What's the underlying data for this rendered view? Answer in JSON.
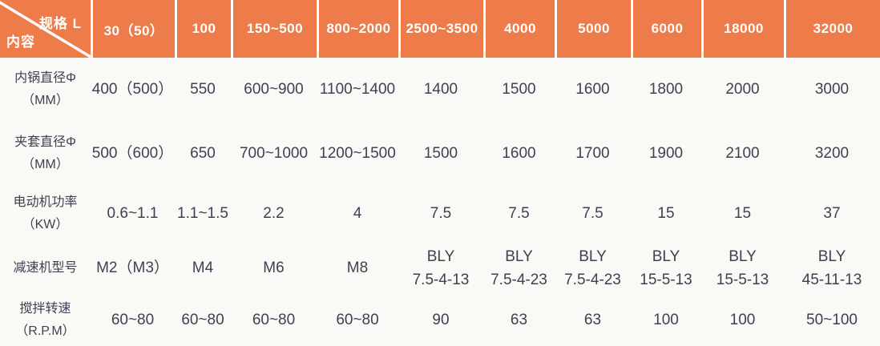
{
  "table": {
    "corner": {
      "top_right": "规格 L",
      "bottom_left": "内容"
    },
    "columns": [
      "30（50）",
      "100",
      "150~500",
      "800~2000",
      "2500~3500",
      "4000",
      "5000",
      "6000",
      "18000",
      "32000"
    ],
    "rows": [
      {
        "label_line1": "内锅直径Φ",
        "label_line2": "（MM）",
        "values": [
          "400（500）",
          "550",
          "600~900",
          "1100~1400",
          "1400",
          "1500",
          "1600",
          "1800",
          "2000",
          "3000"
        ]
      },
      {
        "label_line1": "夹套直径Φ",
        "label_line2": "（MM）",
        "values": [
          "500（600）",
          "650",
          "700~1000",
          "1200~1500",
          "1500",
          "1600",
          "1700",
          "1900",
          "2100",
          "3200"
        ]
      },
      {
        "label_line1": "电动机功率",
        "label_line2": "（KW）",
        "values": [
          "0.6~1.1",
          "1.1~1.5",
          "2.2",
          "4",
          "7.5",
          "7.5",
          "7.5",
          "15",
          "15",
          "37"
        ]
      },
      {
        "label_line1": "减速机型号",
        "label_line2": "",
        "values": [
          "M2（M3）",
          "M4",
          "M6",
          "M8",
          "BLY\n7.5-4-13",
          "BLY\n7.5-4-23",
          "BLY\n7.5-4-23",
          "BLY\n15-5-13",
          "BLY\n15-5-13",
          "BLY\n45-11-13"
        ]
      },
      {
        "label_line1": "搅拌转速",
        "label_line2": "（R.P.M）",
        "values": [
          "60~80",
          "60~80",
          "60~80",
          "60~80",
          "90",
          "63",
          "63",
          "100",
          "100",
          "50~100"
        ]
      }
    ],
    "colors": {
      "header_bg": "#ed7c4a",
      "header_text": "#ffffff",
      "body_bg": "#fbf9f6",
      "body_text": "#3f4052",
      "divider": "#fdfcfa"
    }
  }
}
